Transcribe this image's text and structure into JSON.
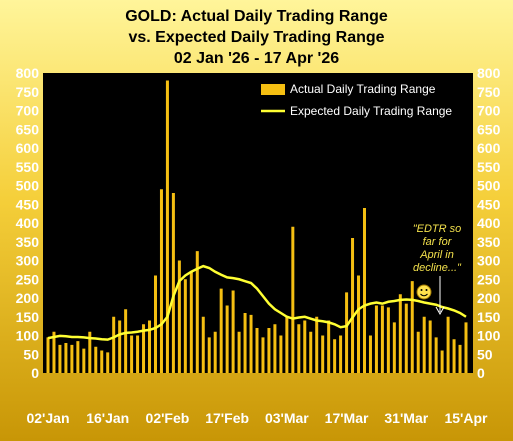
{
  "chart_data": {
    "type": "bar+line",
    "title": [
      "GOLD:  Actual Daily Trading Range",
      "vs. Expected Daily Trading Range",
      "02 Jan '26 - 17 Apr '26"
    ],
    "ylim": [
      0,
      800
    ],
    "yticks": [
      0,
      50,
      100,
      150,
      200,
      250,
      300,
      350,
      400,
      450,
      500,
      550,
      600,
      650,
      700,
      750,
      800
    ],
    "xtick_labels": [
      "02'Jan",
      "16'Jan",
      "02'Feb",
      "17'Feb",
      "03'Mar",
      "17'Mar",
      "31'Mar",
      "15'Apr"
    ],
    "xtick_indices": [
      0,
      10,
      20,
      30,
      40,
      50,
      60,
      70
    ],
    "legend_position": "top-right",
    "legend": {
      "bars": "Actual Daily Trading Range",
      "line": "Expected Daily Trading Range"
    },
    "annotation": "\"EDTR so far for April in decline...\"",
    "colors": {
      "bars": "#f5bf12",
      "line": "#ffff33",
      "plot_bg": "#000000",
      "annotation": "#f2e04c"
    },
    "series": [
      {
        "name": "Actual Daily Trading Range",
        "values": [
          95,
          110,
          75,
          80,
          75,
          85,
          65,
          110,
          70,
          60,
          55,
          150,
          140,
          170,
          100,
          100,
          130,
          140,
          260,
          490,
          780,
          480,
          300,
          250,
          270,
          325,
          150,
          95,
          110,
          225,
          180,
          220,
          110,
          160,
          155,
          120,
          95,
          120,
          130,
          100,
          150,
          390,
          130,
          140,
          110,
          150,
          100,
          140,
          90,
          100,
          215,
          360,
          260,
          440,
          100,
          180,
          180,
          175,
          135,
          210,
          185,
          245,
          110,
          150,
          140,
          95,
          60,
          150,
          90,
          75,
          135
        ]
      },
      {
        "name": "Expected Daily Trading Range",
        "values": [
          93,
          96,
          99,
          98,
          96,
          96,
          95,
          93,
          92,
          90,
          89,
          95,
          103,
          107,
          108,
          110,
          113,
          115,
          120,
          130,
          150,
          205,
          245,
          260,
          270,
          278,
          285,
          280,
          270,
          262,
          255,
          253,
          250,
          245,
          240,
          225,
          205,
          185,
          170,
          160,
          150,
          145,
          148,
          150,
          145,
          140,
          138,
          135,
          130,
          122,
          125,
          148,
          170,
          180,
          185,
          188,
          185,
          190,
          192,
          195,
          196,
          195,
          192,
          188,
          185,
          182,
          176,
          172,
          167,
          160,
          150
        ]
      }
    ]
  }
}
